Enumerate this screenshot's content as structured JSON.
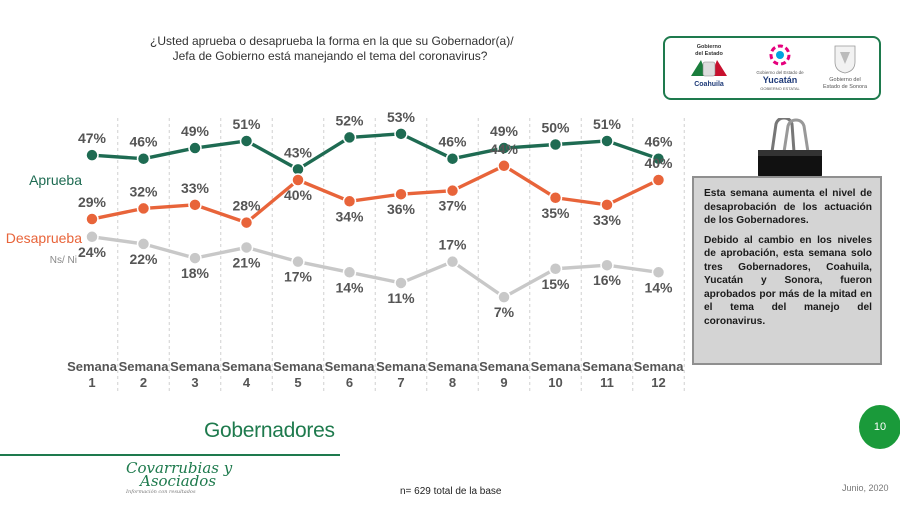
{
  "question": {
    "line1": "¿Usted aprueba o desaprueba la forma en la que su Gobernador(a)/",
    "line2": "Jefa de Gobierno está manejando el tema del coronavirus?"
  },
  "logos": {
    "coahuila": {
      "line1": "Gobierno",
      "line2": "del Estado",
      "name": "Coahuila"
    },
    "yucatan": {
      "top": "Gobierno del Estado de",
      "name": "Yucatán",
      "sub": "GOBIERNO ESTATAL"
    },
    "sonora": {
      "line1": "Gobierno del",
      "line2": "Estado de Sonora"
    }
  },
  "chart_data": {
    "type": "line",
    "categories": [
      "Semana 1",
      "Semana 2",
      "Semana 3",
      "Semana 4",
      "Semana 5",
      "Semana 6",
      "Semana 7",
      "Semana 8",
      "Semana 9",
      "Semana 10",
      "Semana 11",
      "Semana 12"
    ],
    "category_lines": [
      [
        "Semana",
        "1"
      ],
      [
        "Semana",
        "2"
      ],
      [
        "Semana",
        "3"
      ],
      [
        "Semana",
        "4"
      ],
      [
        "Semana",
        "5"
      ],
      [
        "Semana",
        "6"
      ],
      [
        "Semana",
        "7"
      ],
      [
        "Semana",
        "8"
      ],
      [
        "Semana",
        "9"
      ],
      [
        "Semana",
        "10"
      ],
      [
        "Semana",
        "11"
      ],
      [
        "Semana",
        "12"
      ]
    ],
    "series": [
      {
        "name": "Aprueba",
        "color": "#1e6b52",
        "values": [
          47,
          46,
          49,
          51,
          43,
          52,
          53,
          46,
          49,
          50,
          51,
          46
        ]
      },
      {
        "name": "Desaprueba",
        "color": "#e8643a",
        "values": [
          29,
          32,
          33,
          28,
          40,
          34,
          36,
          37,
          44,
          35,
          33,
          40
        ]
      },
      {
        "name": "Ns/ Ni",
        "color": "#c8c8c8",
        "values": [
          24,
          22,
          18,
          21,
          17,
          14,
          11,
          17,
          7,
          15,
          16,
          14
        ]
      }
    ],
    "label_color": "#555555",
    "unit": "%",
    "gridlines": "vertical dashed",
    "legend": "left, inline with series"
  },
  "callout": {
    "p1": "Esta semana aumenta el nivel de desaprobación de los actuación de los Gobernadores.",
    "p2": "Debido al cambio en los niveles de aprobación, esta semana solo tres Gobernadores, Coahuila, Yucatán y Sonora, fueron aprobados por más de la mitad en el tema del manejo del coronavirus."
  },
  "section_title": "Gobernadores",
  "page_number": "10",
  "brand": {
    "line1": "Covarrubias y",
    "line2": "Asociados",
    "tagline": "Información con resultados"
  },
  "base_note": "n= 629 total de la base",
  "date": "Junio, 2020"
}
